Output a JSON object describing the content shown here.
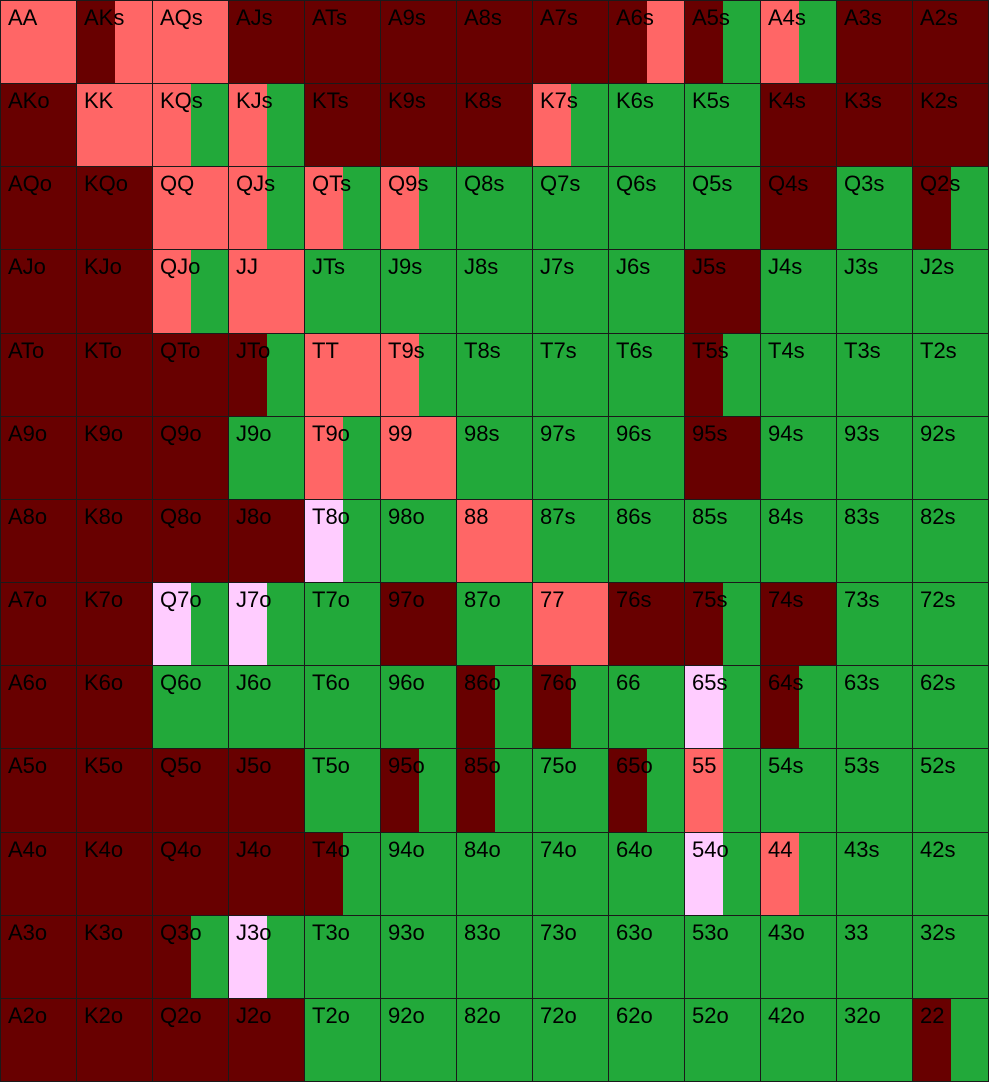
{
  "colors": {
    "D": "#680000",
    "S": "#ff6666",
    "G": "#22a93a",
    "P": "#ffccff"
  },
  "hands": [
    {
      "label": "AA",
      "mix": [
        [
          "S",
          1.0
        ]
      ]
    },
    {
      "label": "AKs",
      "mix": [
        [
          "D",
          0.5
        ],
        [
          "S",
          0.5
        ]
      ]
    },
    {
      "label": "AQs",
      "mix": [
        [
          "S",
          1.0
        ]
      ]
    },
    {
      "label": "AJs",
      "mix": [
        [
          "D",
          1.0
        ]
      ]
    },
    {
      "label": "ATs",
      "mix": [
        [
          "D",
          1.0
        ]
      ]
    },
    {
      "label": "A9s",
      "mix": [
        [
          "D",
          1.0
        ]
      ]
    },
    {
      "label": "A8s",
      "mix": [
        [
          "D",
          1.0
        ]
      ]
    },
    {
      "label": "A7s",
      "mix": [
        [
          "D",
          1.0
        ]
      ]
    },
    {
      "label": "A6s",
      "mix": [
        [
          "D",
          0.5
        ],
        [
          "S",
          0.5
        ]
      ]
    },
    {
      "label": "A5s",
      "mix": [
        [
          "D",
          0.5
        ],
        [
          "G",
          0.5
        ]
      ]
    },
    {
      "label": "A4s",
      "mix": [
        [
          "S",
          0.5
        ],
        [
          "G",
          0.5
        ]
      ]
    },
    {
      "label": "A3s",
      "mix": [
        [
          "D",
          1.0
        ]
      ]
    },
    {
      "label": "A2s",
      "mix": [
        [
          "D",
          1.0
        ]
      ]
    },
    {
      "label": "AKo",
      "mix": [
        [
          "D",
          1.0
        ]
      ]
    },
    {
      "label": "KK",
      "mix": [
        [
          "S",
          1.0
        ]
      ]
    },
    {
      "label": "KQs",
      "mix": [
        [
          "S",
          0.5
        ],
        [
          "G",
          0.5
        ]
      ]
    },
    {
      "label": "KJs",
      "mix": [
        [
          "S",
          0.5
        ],
        [
          "G",
          0.5
        ]
      ]
    },
    {
      "label": "KTs",
      "mix": [
        [
          "D",
          1.0
        ]
      ]
    },
    {
      "label": "K9s",
      "mix": [
        [
          "D",
          1.0
        ]
      ]
    },
    {
      "label": "K8s",
      "mix": [
        [
          "D",
          1.0
        ]
      ]
    },
    {
      "label": "K7s",
      "mix": [
        [
          "S",
          0.5
        ],
        [
          "G",
          0.5
        ]
      ]
    },
    {
      "label": "K6s",
      "mix": [
        [
          "G",
          1.0
        ]
      ]
    },
    {
      "label": "K5s",
      "mix": [
        [
          "G",
          1.0
        ]
      ]
    },
    {
      "label": "K4s",
      "mix": [
        [
          "D",
          1.0
        ]
      ]
    },
    {
      "label": "K3s",
      "mix": [
        [
          "D",
          1.0
        ]
      ]
    },
    {
      "label": "K2s",
      "mix": [
        [
          "D",
          1.0
        ]
      ]
    },
    {
      "label": "AQo",
      "mix": [
        [
          "D",
          1.0
        ]
      ]
    },
    {
      "label": "KQo",
      "mix": [
        [
          "D",
          1.0
        ]
      ]
    },
    {
      "label": "QQ",
      "mix": [
        [
          "S",
          1.0
        ]
      ]
    },
    {
      "label": "QJs",
      "mix": [
        [
          "S",
          0.5
        ],
        [
          "G",
          0.5
        ]
      ]
    },
    {
      "label": "QTs",
      "mix": [
        [
          "S",
          0.5
        ],
        [
          "G",
          0.5
        ]
      ]
    },
    {
      "label": "Q9s",
      "mix": [
        [
          "S",
          0.5
        ],
        [
          "G",
          0.5
        ]
      ]
    },
    {
      "label": "Q8s",
      "mix": [
        [
          "G",
          1.0
        ]
      ]
    },
    {
      "label": "Q7s",
      "mix": [
        [
          "G",
          1.0
        ]
      ]
    },
    {
      "label": "Q6s",
      "mix": [
        [
          "G",
          1.0
        ]
      ]
    },
    {
      "label": "Q5s",
      "mix": [
        [
          "G",
          1.0
        ]
      ]
    },
    {
      "label": "Q4s",
      "mix": [
        [
          "D",
          1.0
        ]
      ]
    },
    {
      "label": "Q3s",
      "mix": [
        [
          "G",
          1.0
        ]
      ]
    },
    {
      "label": "Q2s",
      "mix": [
        [
          "D",
          0.5
        ],
        [
          "G",
          0.5
        ]
      ]
    },
    {
      "label": "AJo",
      "mix": [
        [
          "D",
          1.0
        ]
      ]
    },
    {
      "label": "KJo",
      "mix": [
        [
          "D",
          1.0
        ]
      ]
    },
    {
      "label": "QJo",
      "mix": [
        [
          "S",
          0.5
        ],
        [
          "G",
          0.5
        ]
      ]
    },
    {
      "label": "JJ",
      "mix": [
        [
          "S",
          1.0
        ]
      ]
    },
    {
      "label": "JTs",
      "mix": [
        [
          "G",
          1.0
        ]
      ]
    },
    {
      "label": "J9s",
      "mix": [
        [
          "G",
          1.0
        ]
      ]
    },
    {
      "label": "J8s",
      "mix": [
        [
          "G",
          1.0
        ]
      ]
    },
    {
      "label": "J7s",
      "mix": [
        [
          "G",
          1.0
        ]
      ]
    },
    {
      "label": "J6s",
      "mix": [
        [
          "G",
          1.0
        ]
      ]
    },
    {
      "label": "J5s",
      "mix": [
        [
          "D",
          1.0
        ]
      ]
    },
    {
      "label": "J4s",
      "mix": [
        [
          "G",
          1.0
        ]
      ]
    },
    {
      "label": "J3s",
      "mix": [
        [
          "G",
          1.0
        ]
      ]
    },
    {
      "label": "J2s",
      "mix": [
        [
          "G",
          1.0
        ]
      ]
    },
    {
      "label": "ATo",
      "mix": [
        [
          "D",
          1.0
        ]
      ]
    },
    {
      "label": "KTo",
      "mix": [
        [
          "D",
          1.0
        ]
      ]
    },
    {
      "label": "QTo",
      "mix": [
        [
          "D",
          1.0
        ]
      ]
    },
    {
      "label": "JTo",
      "mix": [
        [
          "D",
          0.5
        ],
        [
          "G",
          0.5
        ]
      ]
    },
    {
      "label": "TT",
      "mix": [
        [
          "S",
          1.0
        ]
      ]
    },
    {
      "label": "T9s",
      "mix": [
        [
          "S",
          0.5
        ],
        [
          "G",
          0.5
        ]
      ]
    },
    {
      "label": "T8s",
      "mix": [
        [
          "G",
          1.0
        ]
      ]
    },
    {
      "label": "T7s",
      "mix": [
        [
          "G",
          1.0
        ]
      ]
    },
    {
      "label": "T6s",
      "mix": [
        [
          "G",
          1.0
        ]
      ]
    },
    {
      "label": "T5s",
      "mix": [
        [
          "D",
          0.5
        ],
        [
          "G",
          0.5
        ]
      ]
    },
    {
      "label": "T4s",
      "mix": [
        [
          "G",
          1.0
        ]
      ]
    },
    {
      "label": "T3s",
      "mix": [
        [
          "G",
          1.0
        ]
      ]
    },
    {
      "label": "T2s",
      "mix": [
        [
          "G",
          1.0
        ]
      ]
    },
    {
      "label": "A9o",
      "mix": [
        [
          "D",
          1.0
        ]
      ]
    },
    {
      "label": "K9o",
      "mix": [
        [
          "D",
          1.0
        ]
      ]
    },
    {
      "label": "Q9o",
      "mix": [
        [
          "D",
          1.0
        ]
      ]
    },
    {
      "label": "J9o",
      "mix": [
        [
          "G",
          1.0
        ]
      ]
    },
    {
      "label": "T9o",
      "mix": [
        [
          "S",
          0.5
        ],
        [
          "G",
          0.5
        ]
      ]
    },
    {
      "label": "99",
      "mix": [
        [
          "S",
          1.0
        ]
      ]
    },
    {
      "label": "98s",
      "mix": [
        [
          "G",
          1.0
        ]
      ]
    },
    {
      "label": "97s",
      "mix": [
        [
          "G",
          1.0
        ]
      ]
    },
    {
      "label": "96s",
      "mix": [
        [
          "G",
          1.0
        ]
      ]
    },
    {
      "label": "95s",
      "mix": [
        [
          "D",
          1.0
        ]
      ]
    },
    {
      "label": "94s",
      "mix": [
        [
          "G",
          1.0
        ]
      ]
    },
    {
      "label": "93s",
      "mix": [
        [
          "G",
          1.0
        ]
      ]
    },
    {
      "label": "92s",
      "mix": [
        [
          "G",
          1.0
        ]
      ]
    },
    {
      "label": "A8o",
      "mix": [
        [
          "D",
          1.0
        ]
      ]
    },
    {
      "label": "K8o",
      "mix": [
        [
          "D",
          1.0
        ]
      ]
    },
    {
      "label": "Q8o",
      "mix": [
        [
          "D",
          1.0
        ]
      ]
    },
    {
      "label": "J8o",
      "mix": [
        [
          "D",
          1.0
        ]
      ]
    },
    {
      "label": "T8o",
      "mix": [
        [
          "P",
          0.5
        ],
        [
          "G",
          0.5
        ]
      ]
    },
    {
      "label": "98o",
      "mix": [
        [
          "G",
          1.0
        ]
      ]
    },
    {
      "label": "88",
      "mix": [
        [
          "S",
          1.0
        ]
      ]
    },
    {
      "label": "87s",
      "mix": [
        [
          "G",
          1.0
        ]
      ]
    },
    {
      "label": "86s",
      "mix": [
        [
          "G",
          1.0
        ]
      ]
    },
    {
      "label": "85s",
      "mix": [
        [
          "G",
          1.0
        ]
      ]
    },
    {
      "label": "84s",
      "mix": [
        [
          "G",
          1.0
        ]
      ]
    },
    {
      "label": "83s",
      "mix": [
        [
          "G",
          1.0
        ]
      ]
    },
    {
      "label": "82s",
      "mix": [
        [
          "G",
          1.0
        ]
      ]
    },
    {
      "label": "A7o",
      "mix": [
        [
          "D",
          1.0
        ]
      ]
    },
    {
      "label": "K7o",
      "mix": [
        [
          "D",
          1.0
        ]
      ]
    },
    {
      "label": "Q7o",
      "mix": [
        [
          "P",
          0.5
        ],
        [
          "G",
          0.5
        ]
      ]
    },
    {
      "label": "J7o",
      "mix": [
        [
          "P",
          0.5
        ],
        [
          "G",
          0.5
        ]
      ]
    },
    {
      "label": "T7o",
      "mix": [
        [
          "G",
          1.0
        ]
      ]
    },
    {
      "label": "97o",
      "mix": [
        [
          "D",
          1.0
        ]
      ]
    },
    {
      "label": "87o",
      "mix": [
        [
          "G",
          1.0
        ]
      ]
    },
    {
      "label": "77",
      "mix": [
        [
          "S",
          1.0
        ]
      ]
    },
    {
      "label": "76s",
      "mix": [
        [
          "D",
          1.0
        ]
      ]
    },
    {
      "label": "75s",
      "mix": [
        [
          "D",
          0.5
        ],
        [
          "G",
          0.5
        ]
      ]
    },
    {
      "label": "74s",
      "mix": [
        [
          "D",
          1.0
        ]
      ]
    },
    {
      "label": "73s",
      "mix": [
        [
          "G",
          1.0
        ]
      ]
    },
    {
      "label": "72s",
      "mix": [
        [
          "G",
          1.0
        ]
      ]
    },
    {
      "label": "A6o",
      "mix": [
        [
          "D",
          1.0
        ]
      ]
    },
    {
      "label": "K6o",
      "mix": [
        [
          "D",
          1.0
        ]
      ]
    },
    {
      "label": "Q6o",
      "mix": [
        [
          "G",
          1.0
        ]
      ]
    },
    {
      "label": "J6o",
      "mix": [
        [
          "G",
          1.0
        ]
      ]
    },
    {
      "label": "T6o",
      "mix": [
        [
          "G",
          1.0
        ]
      ]
    },
    {
      "label": "96o",
      "mix": [
        [
          "G",
          1.0
        ]
      ]
    },
    {
      "label": "86o",
      "mix": [
        [
          "D",
          0.5
        ],
        [
          "G",
          0.5
        ]
      ]
    },
    {
      "label": "76o",
      "mix": [
        [
          "D",
          0.5
        ],
        [
          "G",
          0.5
        ]
      ]
    },
    {
      "label": "66",
      "mix": [
        [
          "G",
          1.0
        ]
      ]
    },
    {
      "label": "65s",
      "mix": [
        [
          "P",
          0.5
        ],
        [
          "G",
          0.5
        ]
      ]
    },
    {
      "label": "64s",
      "mix": [
        [
          "D",
          0.5
        ],
        [
          "G",
          0.5
        ]
      ]
    },
    {
      "label": "63s",
      "mix": [
        [
          "G",
          1.0
        ]
      ]
    },
    {
      "label": "62s",
      "mix": [
        [
          "G",
          1.0
        ]
      ]
    },
    {
      "label": "A5o",
      "mix": [
        [
          "D",
          1.0
        ]
      ]
    },
    {
      "label": "K5o",
      "mix": [
        [
          "D",
          1.0
        ]
      ]
    },
    {
      "label": "Q5o",
      "mix": [
        [
          "D",
          1.0
        ]
      ]
    },
    {
      "label": "J5o",
      "mix": [
        [
          "D",
          1.0
        ]
      ]
    },
    {
      "label": "T5o",
      "mix": [
        [
          "G",
          1.0
        ]
      ]
    },
    {
      "label": "95o",
      "mix": [
        [
          "D",
          0.5
        ],
        [
          "G",
          0.5
        ]
      ]
    },
    {
      "label": "85o",
      "mix": [
        [
          "D",
          0.5
        ],
        [
          "G",
          0.5
        ]
      ]
    },
    {
      "label": "75o",
      "mix": [
        [
          "G",
          1.0
        ]
      ]
    },
    {
      "label": "65o",
      "mix": [
        [
          "D",
          0.5
        ],
        [
          "G",
          0.5
        ]
      ]
    },
    {
      "label": "55",
      "mix": [
        [
          "S",
          0.5
        ],
        [
          "G",
          0.5
        ]
      ]
    },
    {
      "label": "54s",
      "mix": [
        [
          "G",
          1.0
        ]
      ]
    },
    {
      "label": "53s",
      "mix": [
        [
          "G",
          1.0
        ]
      ]
    },
    {
      "label": "52s",
      "mix": [
        [
          "G",
          1.0
        ]
      ]
    },
    {
      "label": "A4o",
      "mix": [
        [
          "D",
          1.0
        ]
      ]
    },
    {
      "label": "K4o",
      "mix": [
        [
          "D",
          1.0
        ]
      ]
    },
    {
      "label": "Q4o",
      "mix": [
        [
          "D",
          1.0
        ]
      ]
    },
    {
      "label": "J4o",
      "mix": [
        [
          "D",
          1.0
        ]
      ]
    },
    {
      "label": "T4o",
      "mix": [
        [
          "D",
          0.5
        ],
        [
          "G",
          0.5
        ]
      ]
    },
    {
      "label": "94o",
      "mix": [
        [
          "G",
          1.0
        ]
      ]
    },
    {
      "label": "84o",
      "mix": [
        [
          "G",
          1.0
        ]
      ]
    },
    {
      "label": "74o",
      "mix": [
        [
          "G",
          1.0
        ]
      ]
    },
    {
      "label": "64o",
      "mix": [
        [
          "G",
          1.0
        ]
      ]
    },
    {
      "label": "54o",
      "mix": [
        [
          "P",
          0.5
        ],
        [
          "G",
          0.5
        ]
      ]
    },
    {
      "label": "44",
      "mix": [
        [
          "S",
          0.5
        ],
        [
          "G",
          0.5
        ]
      ]
    },
    {
      "label": "43s",
      "mix": [
        [
          "G",
          1.0
        ]
      ]
    },
    {
      "label": "42s",
      "mix": [
        [
          "G",
          1.0
        ]
      ]
    },
    {
      "label": "A3o",
      "mix": [
        [
          "D",
          1.0
        ]
      ]
    },
    {
      "label": "K3o",
      "mix": [
        [
          "D",
          1.0
        ]
      ]
    },
    {
      "label": "Q3o",
      "mix": [
        [
          "D",
          0.5
        ],
        [
          "G",
          0.5
        ]
      ]
    },
    {
      "label": "J3o",
      "mix": [
        [
          "P",
          0.5
        ],
        [
          "G",
          0.5
        ]
      ]
    },
    {
      "label": "T3o",
      "mix": [
        [
          "G",
          1.0
        ]
      ]
    },
    {
      "label": "93o",
      "mix": [
        [
          "G",
          1.0
        ]
      ]
    },
    {
      "label": "83o",
      "mix": [
        [
          "G",
          1.0
        ]
      ]
    },
    {
      "label": "73o",
      "mix": [
        [
          "G",
          1.0
        ]
      ]
    },
    {
      "label": "63o",
      "mix": [
        [
          "G",
          1.0
        ]
      ]
    },
    {
      "label": "53o",
      "mix": [
        [
          "G",
          1.0
        ]
      ]
    },
    {
      "label": "43o",
      "mix": [
        [
          "G",
          1.0
        ]
      ]
    },
    {
      "label": "33",
      "mix": [
        [
          "G",
          1.0
        ]
      ]
    },
    {
      "label": "32s",
      "mix": [
        [
          "G",
          1.0
        ]
      ]
    },
    {
      "label": "A2o",
      "mix": [
        [
          "D",
          1.0
        ]
      ]
    },
    {
      "label": "K2o",
      "mix": [
        [
          "D",
          1.0
        ]
      ]
    },
    {
      "label": "Q2o",
      "mix": [
        [
          "D",
          1.0
        ]
      ]
    },
    {
      "label": "J2o",
      "mix": [
        [
          "D",
          1.0
        ]
      ]
    },
    {
      "label": "T2o",
      "mix": [
        [
          "G",
          1.0
        ]
      ]
    },
    {
      "label": "92o",
      "mix": [
        [
          "G",
          1.0
        ]
      ]
    },
    {
      "label": "82o",
      "mix": [
        [
          "G",
          1.0
        ]
      ]
    },
    {
      "label": "72o",
      "mix": [
        [
          "G",
          1.0
        ]
      ]
    },
    {
      "label": "62o",
      "mix": [
        [
          "G",
          1.0
        ]
      ]
    },
    {
      "label": "52o",
      "mix": [
        [
          "G",
          1.0
        ]
      ]
    },
    {
      "label": "42o",
      "mix": [
        [
          "G",
          1.0
        ]
      ]
    },
    {
      "label": "32o",
      "mix": [
        [
          "G",
          1.0
        ]
      ]
    },
    {
      "label": "22",
      "mix": [
        [
          "D",
          0.5
        ],
        [
          "G",
          0.5
        ]
      ]
    }
  ]
}
